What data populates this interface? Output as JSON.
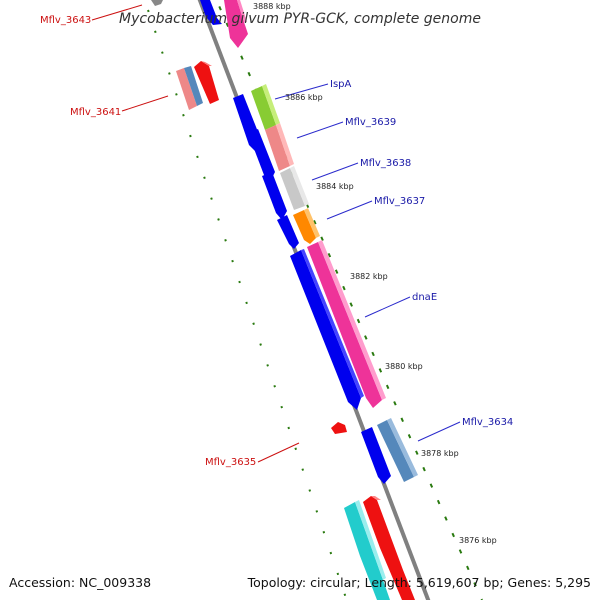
{
  "title": "Mycobacterium gilvum PYR-GCK, complete genome",
  "footer": {
    "accession": "Accession: NC_009338",
    "topology": "Topology: circular; Length: 5,619,607 bp; Genes: 5,295"
  },
  "kbp_ticks": [
    "3888 kbp",
    "3886 kbp",
    "3884 kbp",
    "3882 kbp",
    "3880 kbp",
    "3878 kbp",
    "3876 kbp"
  ],
  "gene_labels": {
    "forward": [
      "IspA",
      "Mflv_3639",
      "Mflv_3638",
      "Mflv_3637",
      "dnaE",
      "Mflv_3634"
    ],
    "reverse": [
      "Mflv_3643",
      "Mflv_3641",
      "Mflv_3635"
    ]
  },
  "colors": {
    "backbone": "#808080",
    "tick_dash": "#2a7a10",
    "cds_blue": "#0000ee",
    "forward_label": "#1a1aa8",
    "reverse_label": "#cc1111",
    "magenta": "#ee3399",
    "pink": "#ee8888",
    "steel": "#5588bb",
    "lime": "#88cc33",
    "grey": "#c8c8c8",
    "orange": "#ff8800",
    "cyan": "#22cccc",
    "red": "#ee1111"
  }
}
